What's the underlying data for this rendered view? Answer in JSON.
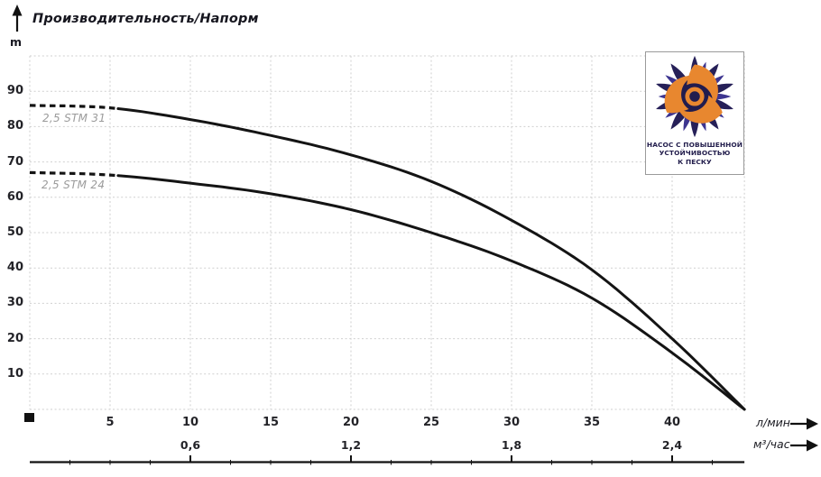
{
  "colors": {
    "curve": "#141414",
    "grid": "#cfcfcf",
    "axis_line": "#111111",
    "tick_text": "#232328",
    "curve_label_text": "#9b9b9b",
    "logo_petal_dark": "#262058",
    "logo_petal_light": "#3d3590",
    "logo_center_disc": "#211c4e",
    "logo_swirl_orange": "#e8872f",
    "logo_caption_text": "#221d4c"
  },
  "logo": {
    "caption_lines": [
      "НАСОС С ПОВЫШЕННОЙ",
      "УСТОЙЧИВОСТЬЮ",
      "К ПЕСКУ"
    ]
  },
  "chart_data": {
    "type": "line",
    "title": "Производительность/Напорм",
    "ylabel": "m",
    "xlabel_primary": "л/мин",
    "xlabel_secondary": "м³/час",
    "xlim_lmin": [
      0,
      44.5
    ],
    "ylim_m": [
      0,
      100
    ],
    "grid": "dotted",
    "legend_position": "inline-left",
    "y_ticks": [
      10,
      20,
      30,
      40,
      50,
      60,
      70,
      80,
      90
    ],
    "x_ticks_lmin": [
      5,
      10,
      15,
      20,
      25,
      30,
      35,
      40
    ],
    "x_ticks_m3h": [
      {
        "label": "0,6",
        "at_lmin": 10
      },
      {
        "label": "1,2",
        "at_lmin": 20
      },
      {
        "label": "1,8",
        "at_lmin": 30
      },
      {
        "label": "2,4",
        "at_lmin": 40
      }
    ],
    "series": [
      {
        "name": "2,5 STM 31",
        "dashed_below_lmin": 5.6,
        "x_lmin": [
          0,
          5,
          10,
          15,
          20,
          25,
          30,
          35,
          40,
          44.5
        ],
        "head_m": [
          86,
          85.3,
          82,
          77.5,
          72,
          64.5,
          53.5,
          39.5,
          20,
          0
        ]
      },
      {
        "name": "2,5 STM 24",
        "dashed_below_lmin": 5.6,
        "x_lmin": [
          0,
          5,
          10,
          15,
          20,
          25,
          30,
          35,
          40,
          44.5
        ],
        "head_m": [
          67,
          66.3,
          64,
          61,
          56.5,
          50,
          42,
          31.5,
          16,
          0
        ]
      }
    ]
  }
}
